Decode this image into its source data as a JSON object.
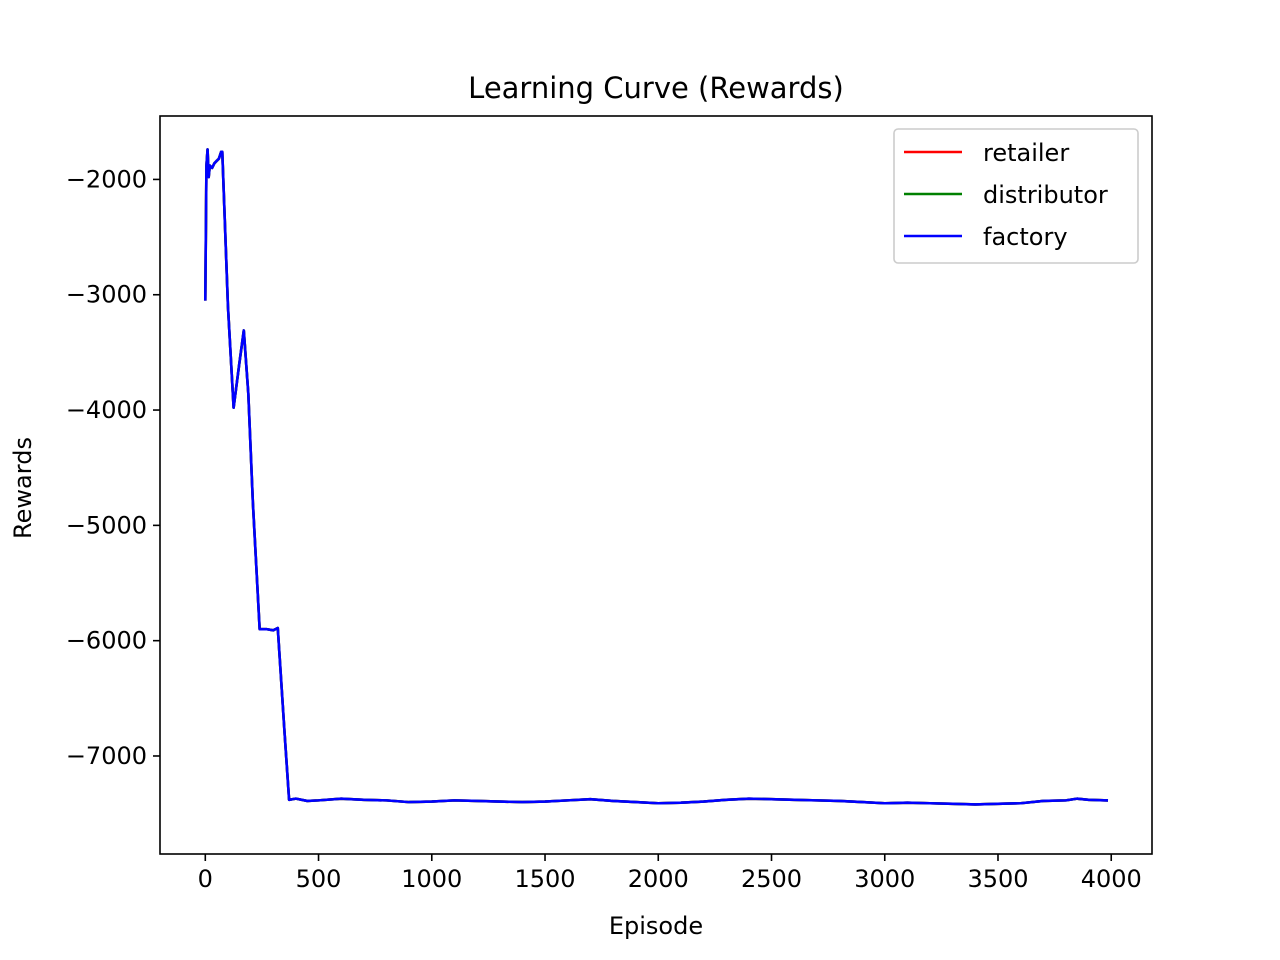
{
  "chart_data": {
    "type": "line",
    "title": "Learning Curve (Rewards)",
    "xlabel": "Episode",
    "ylabel": "Rewards",
    "xlim": [
      -200,
      4180
    ],
    "ylim": [
      -7850,
      -1450
    ],
    "xticks": [
      0,
      500,
      1000,
      1500,
      2000,
      2500,
      3000,
      3500,
      4000
    ],
    "yticks": [
      -2000,
      -3000,
      -4000,
      -5000,
      -6000,
      -7000
    ],
    "xtick_labels": [
      "0",
      "500",
      "1000",
      "1500",
      "2000",
      "2500",
      "3000",
      "3500",
      "4000"
    ],
    "ytick_labels": [
      "−2000",
      "−3000",
      "−4000",
      "−5000",
      "−6000",
      "−7000"
    ],
    "grid": false,
    "legend_position": "top-right",
    "series": [
      {
        "name": "retailer",
        "color": "#ff0000",
        "x": [
          0,
          5,
          10,
          15,
          20,
          30,
          40,
          50,
          60,
          70,
          75,
          100,
          125,
          150,
          170,
          190,
          210,
          240,
          270,
          300,
          320,
          350,
          370,
          400,
          450,
          500,
          600,
          700,
          800,
          900,
          1000,
          1100,
          1200,
          1300,
          1400,
          1500,
          1600,
          1700,
          1800,
          1900,
          2000,
          2100,
          2200,
          2300,
          2400,
          2500,
          2600,
          2700,
          2800,
          2900,
          3000,
          3100,
          3200,
          3300,
          3400,
          3500,
          3600,
          3700,
          3800,
          3850,
          3900,
          3980
        ],
        "y": [
          -3040,
          -1880,
          -1740,
          -1980,
          -1880,
          -1900,
          -1860,
          -1840,
          -1820,
          -1760,
          -1760,
          -3100,
          -3980,
          -3600,
          -3310,
          -3860,
          -4800,
          -5900,
          -5900,
          -5910,
          -5890,
          -6800,
          -7380,
          -7370,
          -7390,
          -7385,
          -7370,
          -7380,
          -7385,
          -7400,
          -7395,
          -7385,
          -7390,
          -7395,
          -7400,
          -7395,
          -7385,
          -7375,
          -7390,
          -7400,
          -7410,
          -7405,
          -7395,
          -7380,
          -7370,
          -7375,
          -7380,
          -7385,
          -7390,
          -7400,
          -7410,
          -7405,
          -7410,
          -7415,
          -7420,
          -7415,
          -7410,
          -7390,
          -7385,
          -7370,
          -7380,
          -7385
        ]
      },
      {
        "name": "distributor",
        "color": "#008000",
        "x": [
          0,
          5,
          10,
          15,
          20,
          30,
          40,
          50,
          60,
          70,
          75,
          100,
          125,
          150,
          170,
          190,
          210,
          240,
          270,
          300,
          320,
          350,
          370,
          400,
          450,
          500,
          600,
          700,
          800,
          900,
          1000,
          1100,
          1200,
          1300,
          1400,
          1500,
          1600,
          1700,
          1800,
          1900,
          2000,
          2100,
          2200,
          2300,
          2400,
          2500,
          2600,
          2700,
          2800,
          2900,
          3000,
          3100,
          3200,
          3300,
          3400,
          3500,
          3600,
          3700,
          3800,
          3850,
          3900,
          3980
        ],
        "y": [
          -3040,
          -1880,
          -1740,
          -1980,
          -1880,
          -1900,
          -1860,
          -1840,
          -1820,
          -1760,
          -1760,
          -3100,
          -3980,
          -3600,
          -3310,
          -3860,
          -4800,
          -5900,
          -5900,
          -5910,
          -5890,
          -6800,
          -7380,
          -7370,
          -7390,
          -7385,
          -7370,
          -7380,
          -7385,
          -7400,
          -7395,
          -7385,
          -7390,
          -7395,
          -7400,
          -7395,
          -7385,
          -7375,
          -7390,
          -7400,
          -7410,
          -7405,
          -7395,
          -7380,
          -7370,
          -7375,
          -7380,
          -7385,
          -7390,
          -7400,
          -7410,
          -7405,
          -7410,
          -7415,
          -7420,
          -7415,
          -7410,
          -7390,
          -7385,
          -7370,
          -7380,
          -7385
        ]
      },
      {
        "name": "factory",
        "color": "#0000ff",
        "x": [
          0,
          5,
          10,
          15,
          20,
          30,
          40,
          50,
          60,
          70,
          75,
          100,
          125,
          150,
          170,
          190,
          210,
          240,
          270,
          300,
          320,
          350,
          370,
          400,
          450,
          500,
          600,
          700,
          800,
          900,
          1000,
          1100,
          1200,
          1300,
          1400,
          1500,
          1600,
          1700,
          1800,
          1900,
          2000,
          2100,
          2200,
          2300,
          2400,
          2500,
          2600,
          2700,
          2800,
          2900,
          3000,
          3100,
          3200,
          3300,
          3400,
          3500,
          3600,
          3700,
          3800,
          3850,
          3900,
          3980
        ],
        "y": [
          -3040,
          -1880,
          -1740,
          -1980,
          -1880,
          -1900,
          -1860,
          -1840,
          -1820,
          -1760,
          -1760,
          -3100,
          -3980,
          -3600,
          -3310,
          -3860,
          -4800,
          -5900,
          -5900,
          -5910,
          -5890,
          -6800,
          -7380,
          -7370,
          -7390,
          -7385,
          -7370,
          -7380,
          -7385,
          -7400,
          -7395,
          -7385,
          -7390,
          -7395,
          -7400,
          -7395,
          -7385,
          -7375,
          -7390,
          -7400,
          -7410,
          -7405,
          -7395,
          -7380,
          -7370,
          -7375,
          -7380,
          -7385,
          -7390,
          -7400,
          -7410,
          -7405,
          -7410,
          -7415,
          -7420,
          -7415,
          -7410,
          -7390,
          -7385,
          -7370,
          -7380,
          -7385
        ]
      }
    ]
  }
}
